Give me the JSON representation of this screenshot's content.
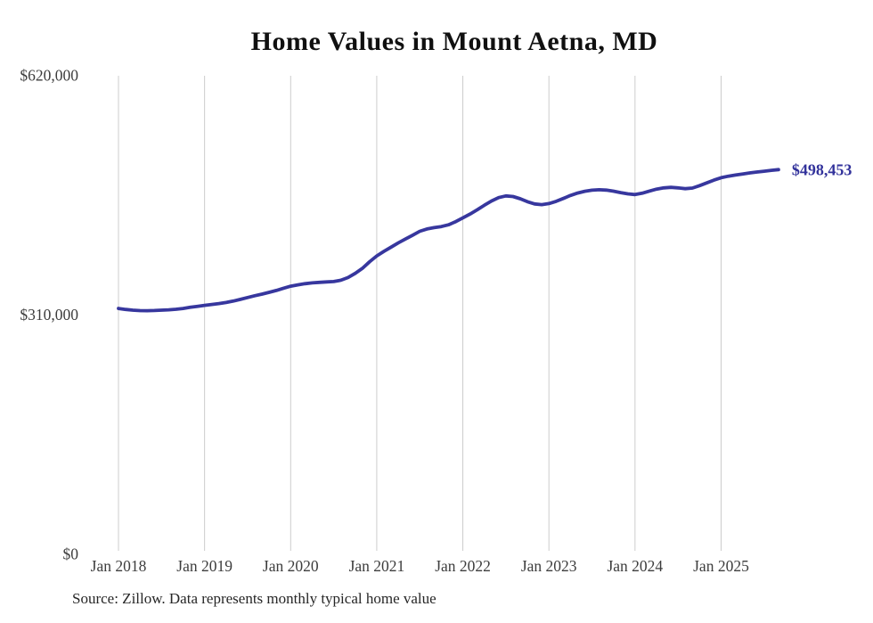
{
  "chart": {
    "title": "Home Values in Mount Aetna, MD",
    "source_note": "Source: Zillow. Data represents monthly typical home value",
    "current_value_label": "$498,453"
  },
  "colors": {
    "line": "#37379e",
    "end_label": "#32329b",
    "grid": "#cccccc",
    "axis_text": "#3d3d3d",
    "title_text": "#101010",
    "source_text": "#262626",
    "background": "#ffffff"
  },
  "chart_data": {
    "type": "line",
    "title": "Home Values in Mount Aetna, MD",
    "xlabel": "",
    "ylabel": "",
    "ylim": [
      0,
      620000
    ],
    "grid": "vertical-only",
    "legend": "none",
    "x_tick_labels": [
      "Jan 2018",
      "Jan 2019",
      "Jan 2020",
      "Jan 2021",
      "Jan 2022",
      "Jan 2023",
      "Jan 2024",
      "Jan 2025"
    ],
    "y_ticks": [
      {
        "label": "$620,000",
        "value": 620000
      },
      {
        "label": "$310,000",
        "value": 310000
      },
      {
        "label": "$0",
        "value": 0
      }
    ],
    "series": [
      {
        "name": "Typical home value (monthly)",
        "unit": "USD",
        "months_start": "2018-01",
        "months_end": "2025-09",
        "end_value": 498453,
        "end_label": "$498,453",
        "values": [
          318500,
          317300,
          316300,
          315800,
          315700,
          315900,
          316300,
          316800,
          317500,
          318600,
          320000,
          321300,
          322600,
          323700,
          324900,
          326300,
          328100,
          330300,
          332800,
          335000,
          337100,
          339400,
          341900,
          344700,
          347400,
          349100,
          350600,
          351700,
          352400,
          352900,
          353400,
          355100,
          358600,
          364000,
          370500,
          379000,
          386500,
          392500,
          398000,
          403500,
          408500,
          413500,
          418500,
          421500,
          423300,
          424600,
          427000,
          431000,
          436000,
          440800,
          446300,
          452200,
          457800,
          462200,
          464400,
          463600,
          460700,
          456900,
          454000,
          453100,
          454400,
          457300,
          461000,
          464900,
          468100,
          470400,
          471800,
          472300,
          471900,
          470500,
          468600,
          467000,
          466100,
          467800,
          470600,
          473100,
          474700,
          475400,
          474800,
          473700,
          474500,
          477600,
          481200,
          484800,
          487900,
          489900,
          491400,
          492800,
          494100,
          495300,
          496400,
          497500,
          498453
        ]
      }
    ]
  }
}
